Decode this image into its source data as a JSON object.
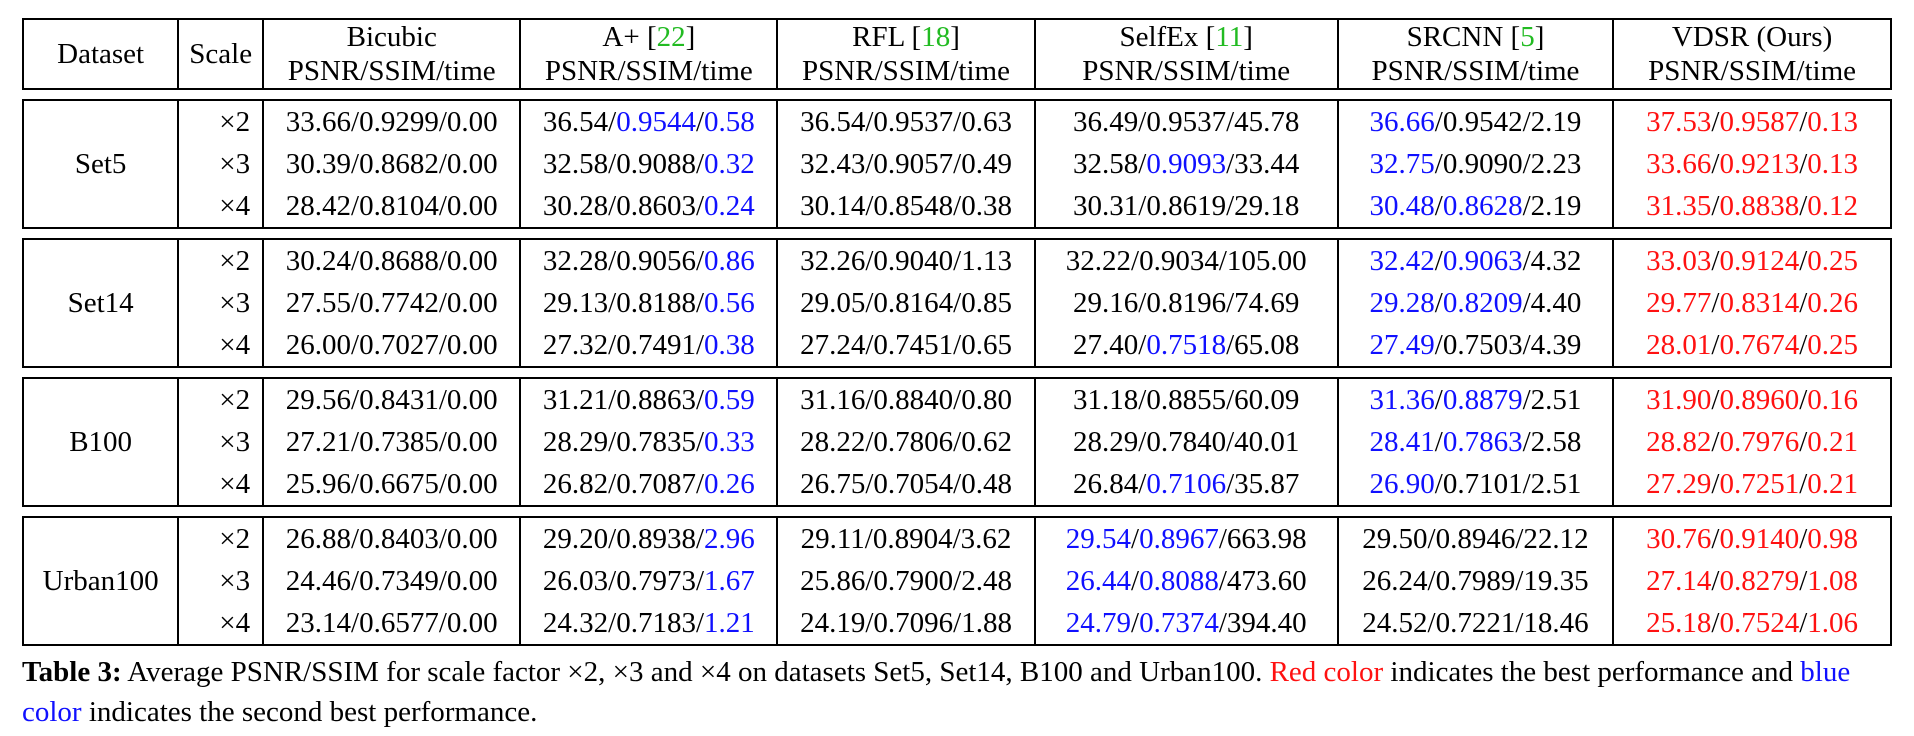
{
  "table": {
    "header_dataset": "Dataset",
    "header_scale": "Scale",
    "metric_label": "PSNR/SSIM/time",
    "methods": [
      {
        "name": "Bicubic",
        "ref": ""
      },
      {
        "name": "A+ ",
        "ref": "22"
      },
      {
        "name": "RFL ",
        "ref": "18"
      },
      {
        "name": "SelfEx ",
        "ref": "11"
      },
      {
        "name": "SRCNN ",
        "ref": "5"
      },
      {
        "name": "VDSR (Ours)",
        "ref": ""
      }
    ],
    "colors": {
      "best": "#ff1111",
      "second": "#1010ff",
      "citation": "#22bb22"
    },
    "groups": [
      {
        "dataset": "Set5",
        "scales": [
          "×2",
          "×3",
          "×4"
        ],
        "cells": [
          [
            [
              "33.66",
              "",
              "0.9299",
              "",
              "0.00",
              ""
            ],
            [
              "36.54",
              "",
              "0.9544",
              "b",
              "0.58",
              "b"
            ],
            [
              "36.54",
              "",
              "0.9537",
              "",
              "0.63",
              ""
            ],
            [
              "36.49",
              "",
              "0.9537",
              "",
              "45.78",
              ""
            ],
            [
              "36.66",
              "b",
              "0.9542",
              "",
              "2.19",
              ""
            ],
            [
              "37.53",
              "r",
              "0.9587",
              "r",
              "0.13",
              "r"
            ]
          ],
          [
            [
              "30.39",
              "",
              "0.8682",
              "",
              "0.00",
              ""
            ],
            [
              "32.58",
              "",
              "0.9088",
              "",
              "0.32",
              "b"
            ],
            [
              "32.43",
              "",
              "0.9057",
              "",
              "0.49",
              ""
            ],
            [
              "32.58",
              "",
              "0.9093",
              "b",
              "33.44",
              ""
            ],
            [
              "32.75",
              "b",
              "0.9090",
              "",
              "2.23",
              ""
            ],
            [
              "33.66",
              "r",
              "0.9213",
              "r",
              "0.13",
              "r"
            ]
          ],
          [
            [
              "28.42",
              "",
              "0.8104",
              "",
              "0.00",
              ""
            ],
            [
              "30.28",
              "",
              "0.8603",
              "",
              "0.24",
              "b"
            ],
            [
              "30.14",
              "",
              "0.8548",
              "",
              "0.38",
              ""
            ],
            [
              "30.31",
              "",
              "0.8619",
              "",
              "29.18",
              ""
            ],
            [
              "30.48",
              "b",
              "0.8628",
              "b",
              "2.19",
              ""
            ],
            [
              "31.35",
              "r",
              "0.8838",
              "r",
              "0.12",
              "r"
            ]
          ]
        ]
      },
      {
        "dataset": "Set14",
        "scales": [
          "×2",
          "×3",
          "×4"
        ],
        "cells": [
          [
            [
              "30.24",
              "",
              "0.8688",
              "",
              "0.00",
              ""
            ],
            [
              "32.28",
              "",
              "0.9056",
              "",
              "0.86",
              "b"
            ],
            [
              "32.26",
              "",
              "0.9040",
              "",
              "1.13",
              ""
            ],
            [
              "32.22",
              "",
              "0.9034",
              "",
              "105.00",
              ""
            ],
            [
              "32.42",
              "b",
              "0.9063",
              "b",
              "4.32",
              ""
            ],
            [
              "33.03",
              "r",
              "0.9124",
              "r",
              "0.25",
              "r"
            ]
          ],
          [
            [
              "27.55",
              "",
              "0.7742",
              "",
              "0.00",
              ""
            ],
            [
              "29.13",
              "",
              "0.8188",
              "",
              "0.56",
              "b"
            ],
            [
              "29.05",
              "",
              "0.8164",
              "",
              "0.85",
              ""
            ],
            [
              "29.16",
              "",
              "0.8196",
              "",
              "74.69",
              ""
            ],
            [
              "29.28",
              "b",
              "0.8209",
              "b",
              "4.40",
              ""
            ],
            [
              "29.77",
              "r",
              "0.8314",
              "r",
              "0.26",
              "r"
            ]
          ],
          [
            [
              "26.00",
              "",
              "0.7027",
              "",
              "0.00",
              ""
            ],
            [
              "27.32",
              "",
              "0.7491",
              "",
              "0.38",
              "b"
            ],
            [
              "27.24",
              "",
              "0.7451",
              "",
              "0.65",
              ""
            ],
            [
              "27.40",
              "",
              "0.7518",
              "b",
              "65.08",
              ""
            ],
            [
              "27.49",
              "b",
              "0.7503",
              "",
              "4.39",
              ""
            ],
            [
              "28.01",
              "r",
              "0.7674",
              "r",
              "0.25",
              "r"
            ]
          ]
        ]
      },
      {
        "dataset": "B100",
        "scales": [
          "×2",
          "×3",
          "×4"
        ],
        "cells": [
          [
            [
              "29.56",
              "",
              "0.8431",
              "",
              "0.00",
              ""
            ],
            [
              "31.21",
              "",
              "0.8863",
              "",
              "0.59",
              "b"
            ],
            [
              "31.16",
              "",
              "0.8840",
              "",
              "0.80",
              ""
            ],
            [
              "31.18",
              "",
              "0.8855",
              "",
              "60.09",
              ""
            ],
            [
              "31.36",
              "b",
              "0.8879",
              "b",
              "2.51",
              ""
            ],
            [
              "31.90",
              "r",
              "0.8960",
              "r",
              "0.16",
              "r"
            ]
          ],
          [
            [
              "27.21",
              "",
              "0.7385",
              "",
              "0.00",
              ""
            ],
            [
              "28.29",
              "",
              "0.7835",
              "",
              "0.33",
              "b"
            ],
            [
              "28.22",
              "",
              "0.7806",
              "",
              "0.62",
              ""
            ],
            [
              "28.29",
              "",
              "0.7840",
              "",
              "40.01",
              ""
            ],
            [
              "28.41",
              "b",
              "0.7863",
              "b",
              "2.58",
              ""
            ],
            [
              "28.82",
              "r",
              "0.7976",
              "r",
              "0.21",
              "r"
            ]
          ],
          [
            [
              "25.96",
              "",
              "0.6675",
              "",
              "0.00",
              ""
            ],
            [
              "26.82",
              "",
              "0.7087",
              "",
              "0.26",
              "b"
            ],
            [
              "26.75",
              "",
              "0.7054",
              "",
              "0.48",
              ""
            ],
            [
              "26.84",
              "",
              "0.7106",
              "b",
              "35.87",
              ""
            ],
            [
              "26.90",
              "b",
              "0.7101",
              "",
              "2.51",
              ""
            ],
            [
              "27.29",
              "r",
              "0.7251",
              "r",
              "0.21",
              "r"
            ]
          ]
        ]
      },
      {
        "dataset": "Urban100",
        "scales": [
          "×2",
          "×3",
          "×4"
        ],
        "cells": [
          [
            [
              "26.88",
              "",
              "0.8403",
              "",
              "0.00",
              ""
            ],
            [
              "29.20",
              "",
              "0.8938",
              "",
              "2.96",
              "b"
            ],
            [
              "29.11",
              "",
              "0.8904",
              "",
              "3.62",
              ""
            ],
            [
              "29.54",
              "b",
              "0.8967",
              "b",
              "663.98",
              ""
            ],
            [
              "29.50",
              "",
              "0.8946",
              "",
              "22.12",
              ""
            ],
            [
              "30.76",
              "r",
              "0.9140",
              "r",
              "0.98",
              "r"
            ]
          ],
          [
            [
              "24.46",
              "",
              "0.7349",
              "",
              "0.00",
              ""
            ],
            [
              "26.03",
              "",
              "0.7973",
              "",
              "1.67",
              "b"
            ],
            [
              "25.86",
              "",
              "0.7900",
              "",
              "2.48",
              ""
            ],
            [
              "26.44",
              "b",
              "0.8088",
              "b",
              "473.60",
              ""
            ],
            [
              "26.24",
              "",
              "0.7989",
              "",
              "19.35",
              ""
            ],
            [
              "27.14",
              "r",
              "0.8279",
              "r",
              "1.08",
              "r"
            ]
          ],
          [
            [
              "23.14",
              "",
              "0.6577",
              "",
              "0.00",
              ""
            ],
            [
              "24.32",
              "",
              "0.7183",
              "",
              "1.21",
              "b"
            ],
            [
              "24.19",
              "",
              "0.7096",
              "",
              "1.88",
              ""
            ],
            [
              "24.79",
              "b",
              "0.7374",
              "b",
              "394.40",
              ""
            ],
            [
              "24.52",
              "",
              "0.7221",
              "",
              "18.46",
              ""
            ],
            [
              "25.18",
              "r",
              "0.7524",
              "r",
              "1.06",
              "r"
            ]
          ]
        ]
      }
    ]
  },
  "caption": {
    "label": "Table 3:",
    "text1": " Average PSNR/SSIM for scale factor ×2, ×3 and ×4 on datasets Set5, Set14, B100 and Urban100. ",
    "red_phrase": "Red color",
    "text2": " indicates the best performance and ",
    "blue_phrase": "blue color",
    "text3": " indicates the second best performance."
  }
}
